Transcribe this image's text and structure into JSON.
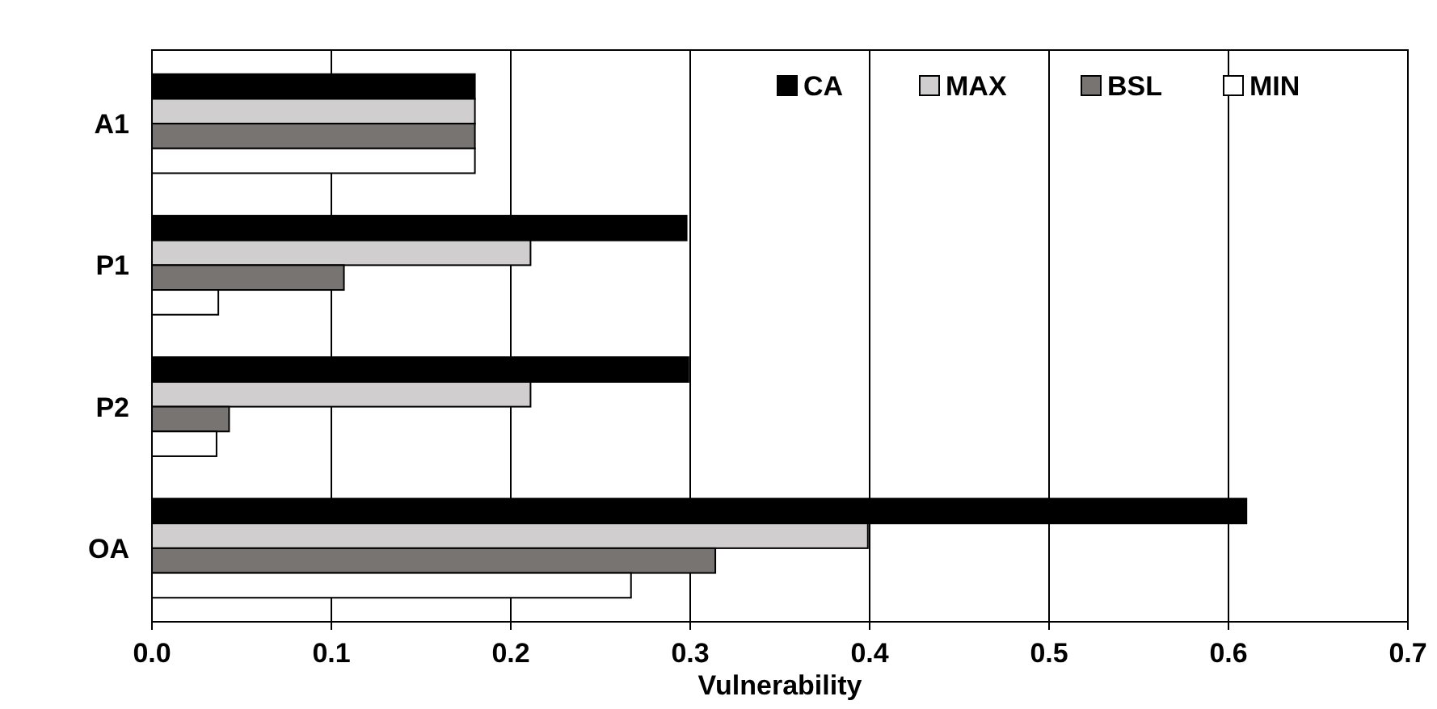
{
  "chart_data": {
    "type": "bar",
    "orientation": "horizontal",
    "xlabel": "Vulnerability",
    "categories": [
      "A1",
      "P1",
      "P2",
      "OA"
    ],
    "series": [
      {
        "name": "CA",
        "color": "#000000",
        "values": [
          0.18,
          0.298,
          0.299,
          0.61
        ]
      },
      {
        "name": "MAX",
        "color": "#d0cece",
        "values": [
          0.18,
          0.211,
          0.211,
          0.399
        ]
      },
      {
        "name": "BSL",
        "color": "#787472",
        "values": [
          0.18,
          0.107,
          0.043,
          0.314
        ]
      },
      {
        "name": "MIN",
        "color": "#ffffff",
        "values": [
          0.18,
          0.037,
          0.036,
          0.267
        ]
      }
    ],
    "xlim": [
      0,
      0.7
    ],
    "xticks": [
      {
        "value": 0,
        "label": "0.0"
      },
      {
        "value": 0.1,
        "label": "0.1"
      },
      {
        "value": 0.2,
        "label": "0.2"
      },
      {
        "value": 0.3,
        "label": "0.3"
      },
      {
        "value": 0.4,
        "label": "0.4"
      },
      {
        "value": 0.5,
        "label": "0.5"
      },
      {
        "value": 0.6,
        "label": "0.6"
      },
      {
        "value": 0.7,
        "label": "0.7"
      }
    ],
    "grid": "x",
    "legend": "top right"
  }
}
